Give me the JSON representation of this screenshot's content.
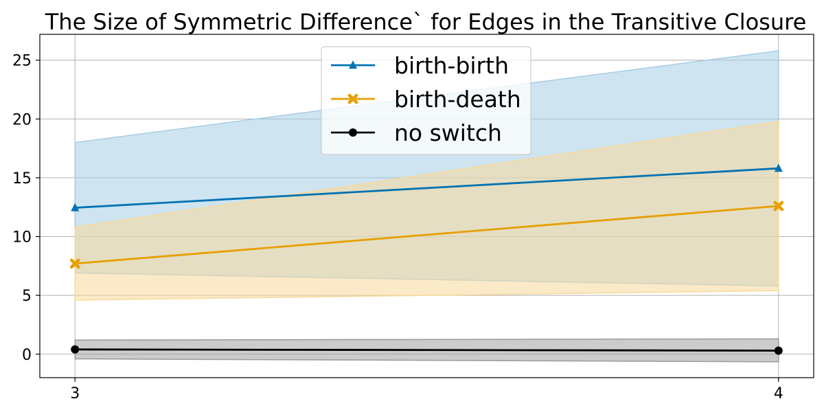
{
  "chart_data": {
    "type": "line",
    "title": "The Size of Symmetric Difference` for Edges in the Transitive Closure",
    "xlabel": "",
    "ylabel": "",
    "x": [
      3,
      4
    ],
    "x_ticks": [
      "3",
      "4"
    ],
    "y_ticks": [
      "0",
      "5",
      "10",
      "15",
      "20",
      "25"
    ],
    "xlim": [
      2.95,
      4.05
    ],
    "ylim": [
      -2,
      27.2
    ],
    "grid": true,
    "legend_position": "top-center",
    "series": [
      {
        "name": "birth-birth",
        "values": [
          12.45,
          15.8
        ],
        "band_lower": [
          6.9,
          5.8
        ],
        "band_upper": [
          18.0,
          25.8
        ],
        "color": "#0072b2",
        "band_color": "#a6cde6",
        "marker": "triangle"
      },
      {
        "name": "birth-death",
        "values": [
          7.7,
          12.6
        ],
        "band_lower": [
          4.6,
          5.4
        ],
        "band_upper": [
          10.8,
          19.8
        ],
        "color": "#e69f00",
        "band_color": "#f7d99a",
        "marker": "x"
      },
      {
        "name": "no switch",
        "values": [
          0.4,
          0.3
        ],
        "band_lower": [
          -0.4,
          -0.65
        ],
        "band_upper": [
          1.2,
          1.3
        ],
        "color": "#000000",
        "band_color": "#999999",
        "marker": "circle"
      }
    ]
  }
}
